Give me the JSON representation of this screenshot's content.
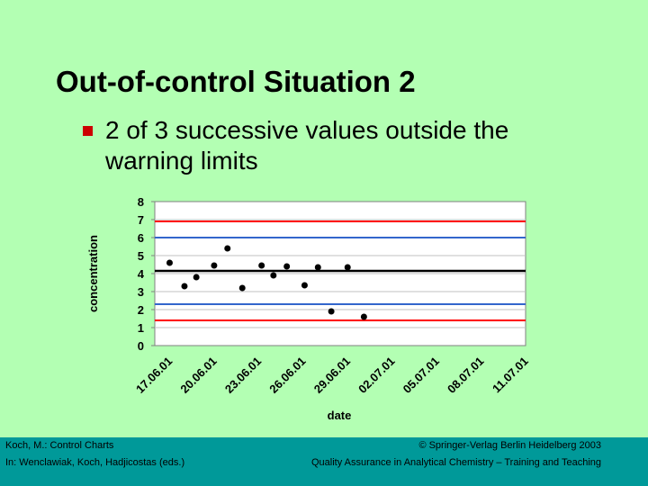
{
  "slide": {
    "title": "Out-of-control Situation 2",
    "bullet": "2 of 3 successive values outside the warning limits"
  },
  "footer": {
    "left_line1": "Koch, M.: Control Charts",
    "left_line2": "In: Wenclawiak, Koch, Hadjicostas (eds.)",
    "right_line1": "© Springer-Verlag Berlin Heidelberg 2003",
    "right_line2": "Quality Assurance in Analytical Chemistry – Training and Teaching"
  },
  "colors": {
    "background": "#b3ffb3",
    "footer": "#009999",
    "bullet": "#cc0000",
    "plot_area": "#ffffff",
    "control_limit": "#ff0000",
    "warning_limit": "#3366cc",
    "center_line": "#000000"
  },
  "chart_data": {
    "type": "scatter",
    "xlabel": "date",
    "ylabel": "concentration",
    "ylim": [
      0,
      8
    ],
    "yticks": [
      "0",
      "1",
      "2",
      "3",
      "4",
      "5",
      "6",
      "7",
      "8"
    ],
    "x_tick_labels": [
      "17.06.01",
      "20.06.01",
      "23.06.01",
      "26.06.01",
      "29.06.01",
      "02.07.01",
      "05.07.01",
      "08.07.01",
      "11.07.01"
    ],
    "x_tick_days": [
      0,
      3,
      6,
      9,
      12,
      15,
      18,
      21,
      24
    ],
    "xlim_days": [
      -0.5,
      24.5
    ],
    "grid": "horizontal",
    "lines": [
      {
        "role": "upper-control-limit",
        "value": 6.9,
        "color": "#ff0000"
      },
      {
        "role": "upper-warning-limit",
        "value": 6.0,
        "color": "#3366cc"
      },
      {
        "role": "center-line",
        "value": 4.15,
        "color": "#000000"
      },
      {
        "role": "lower-warning-limit",
        "value": 2.3,
        "color": "#3366cc"
      },
      {
        "role": "lower-control-limit",
        "value": 1.4,
        "color": "#ff0000"
      }
    ],
    "points": [
      {
        "day": 0.5,
        "y": 4.6
      },
      {
        "day": 1.5,
        "y": 3.3
      },
      {
        "day": 2.3,
        "y": 3.8
      },
      {
        "day": 3.5,
        "y": 4.45
      },
      {
        "day": 4.4,
        "y": 5.4
      },
      {
        "day": 5.4,
        "y": 3.2
      },
      {
        "day": 6.7,
        "y": 4.45
      },
      {
        "day": 7.5,
        "y": 3.9
      },
      {
        "day": 8.4,
        "y": 4.4
      },
      {
        "day": 9.6,
        "y": 3.35
      },
      {
        "day": 10.5,
        "y": 4.35
      },
      {
        "day": 11.4,
        "y": 1.9
      },
      {
        "day": 12.5,
        "y": 4.35
      },
      {
        "day": 13.6,
        "y": 1.6
      }
    ]
  }
}
